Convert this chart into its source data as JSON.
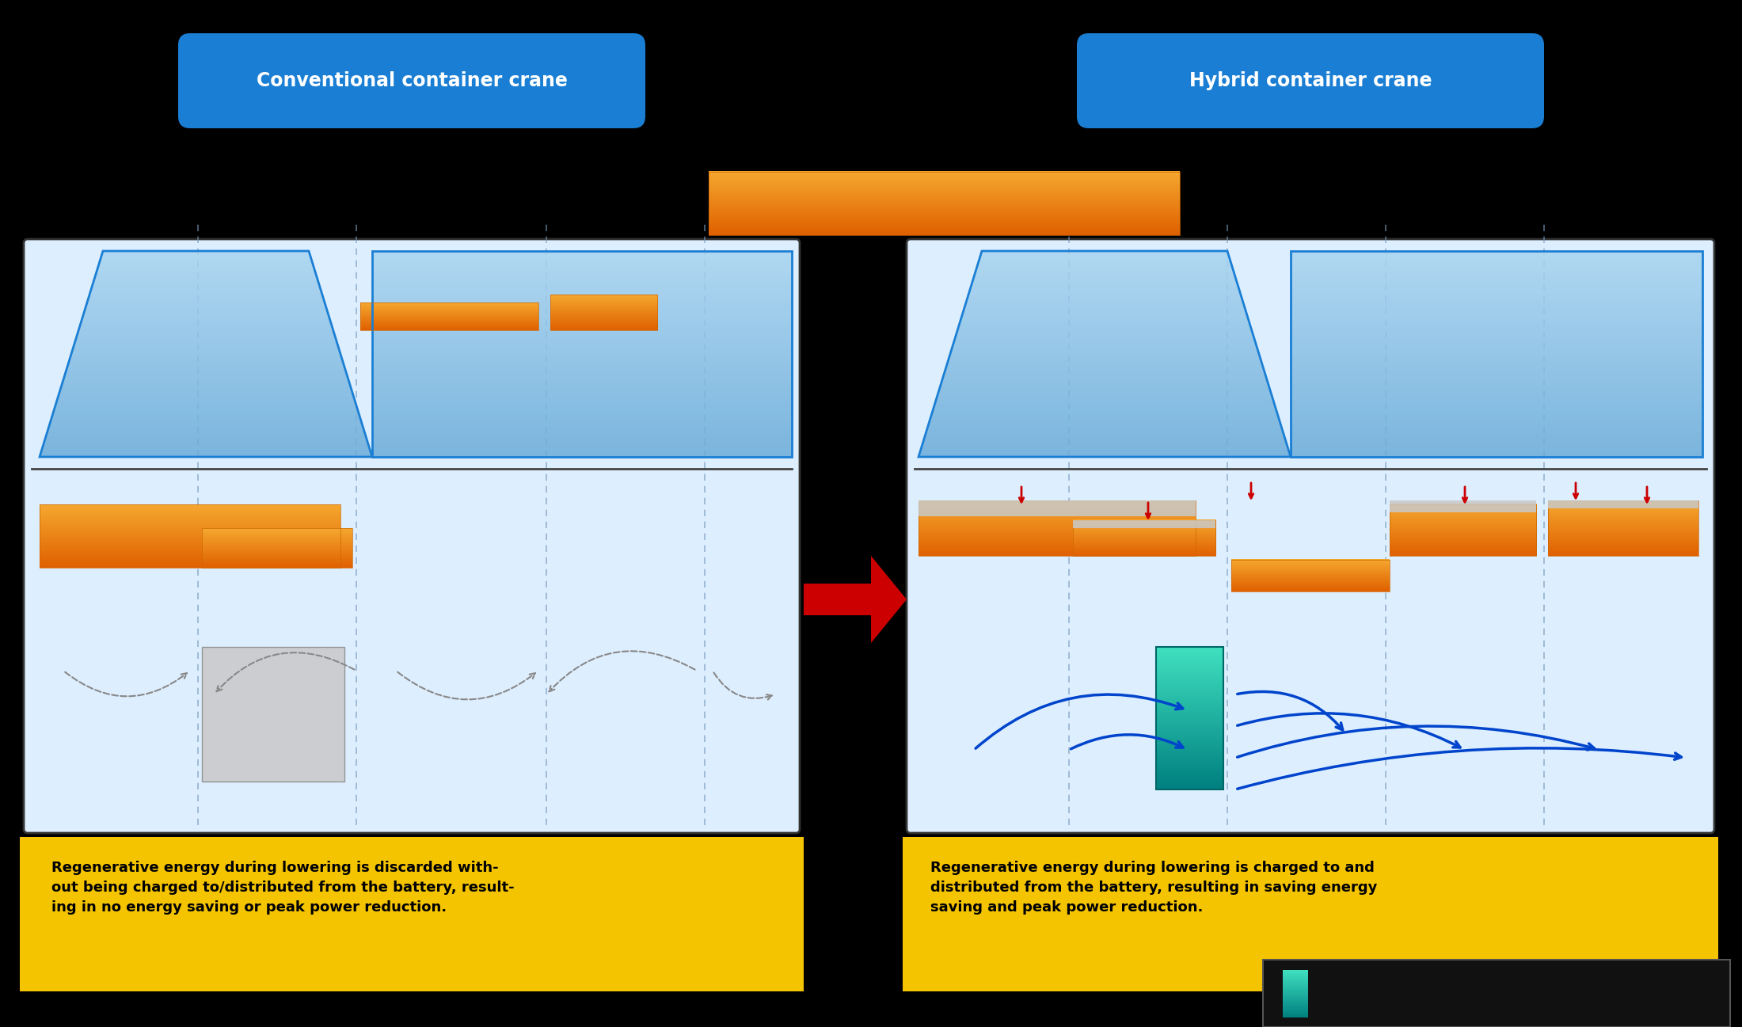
{
  "title_left": "Conventional container crane",
  "title_right": "Hybrid container crane",
  "title_bg_color": "#1a7fd4",
  "title_text_color": "#ffffff",
  "panel_bg_color": "#ddeeff",
  "overall_bg_color": "#000000",
  "trapezoid_fill_top": "#a8d4f0",
  "trapezoid_fill_bottom": "#6aabd8",
  "trapezoid_stroke": "#1a7fd4",
  "orange_fill_top": "#f5a830",
  "orange_fill_bottom": "#e06000",
  "gray_rect_color": "#c0c0c0",
  "teal_rect_top": "#40e0c0",
  "teal_rect_bottom": "#008080",
  "red_arrow_color": "#cc0000",
  "blue_arrow_color": "#0044cc",
  "dashed_arrow_color": "#888888",
  "dashed_line_color": "#888888",
  "yellow_box_color": "#f5c400",
  "text_left": "Regenerative energy during lowering is discarded with-\nout being charged to/distributed from the battery, result-\ning in no energy saving or peak power reduction.",
  "text_right": "Regenerative energy during lowering is charged to and\ndistributed from the battery, resulting in saving energy\nsaving and peak power reduction.",
  "divider_arrow_color": "#cc0000",
  "separator_color": "#333333"
}
